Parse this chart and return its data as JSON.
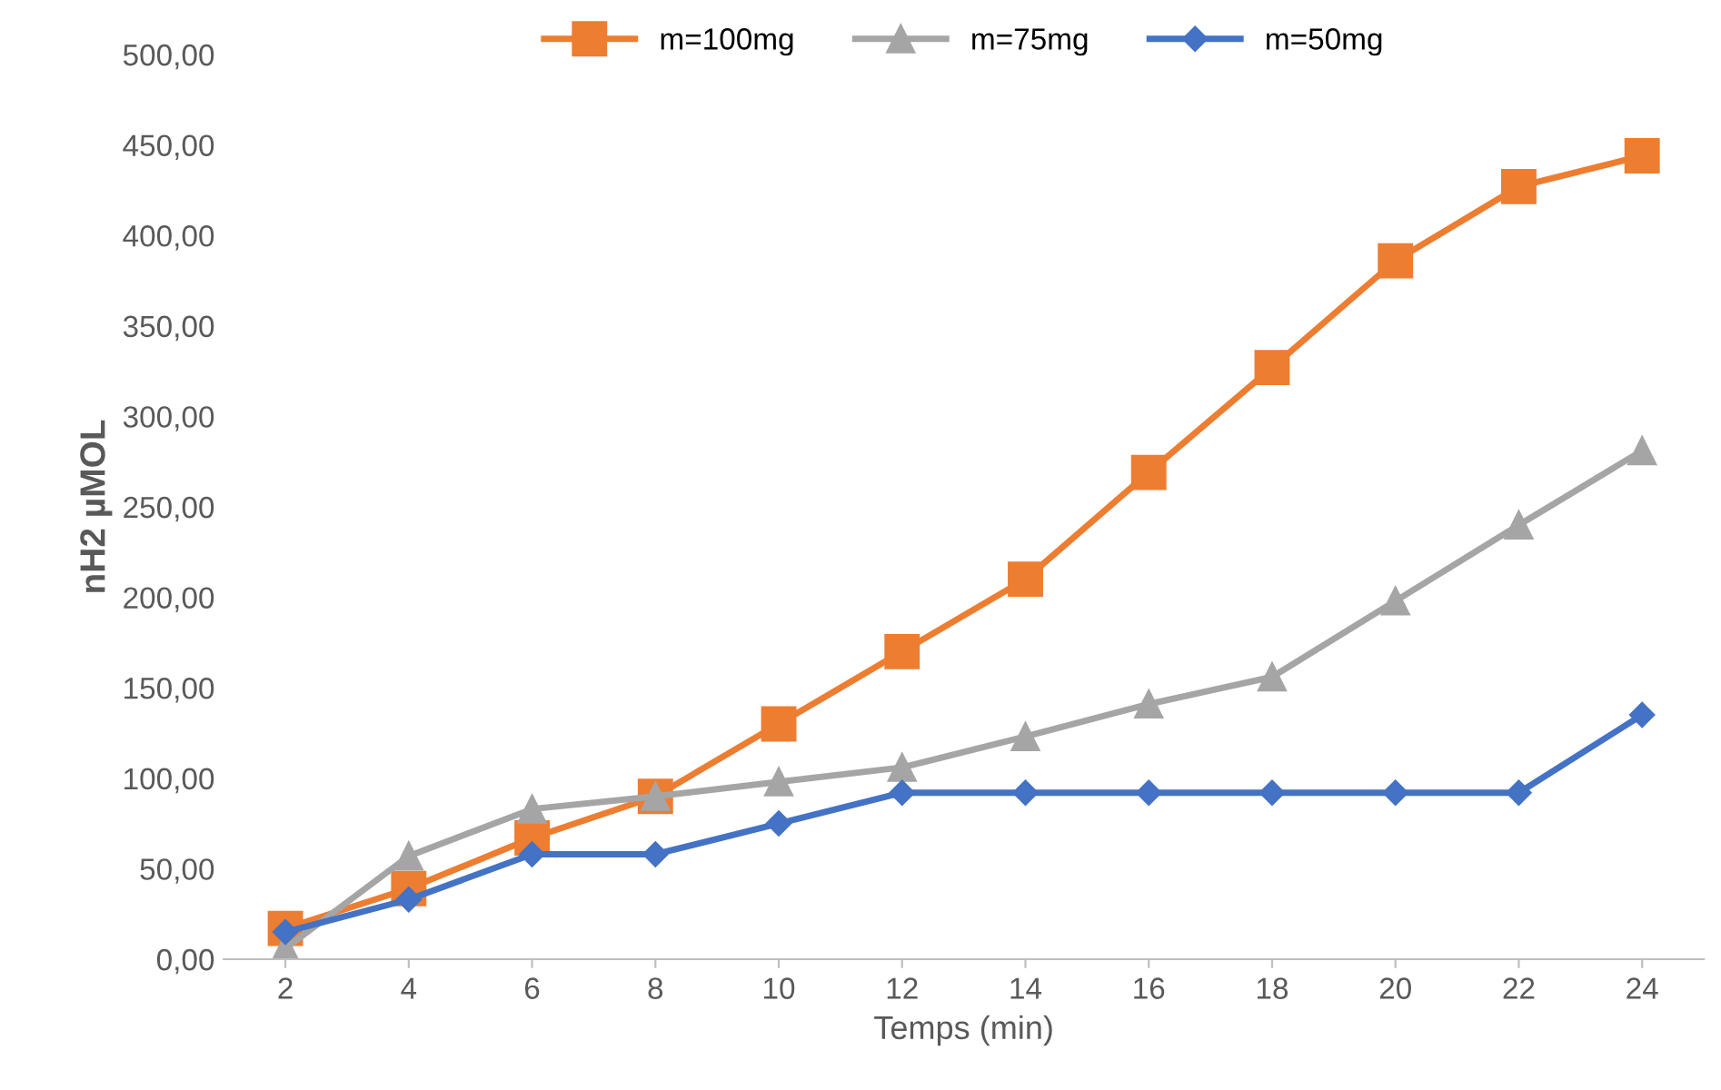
{
  "chart_data": {
    "type": "line",
    "xlabel": "Temps (min)",
    "ylabel": "nH2 µMOL",
    "categories": [
      "2",
      "4",
      "6",
      "8",
      "10",
      "12",
      "14",
      "16",
      "18",
      "20",
      "22",
      "24"
    ],
    "series": [
      {
        "name": "m=100mg",
        "color": "#ed7d31",
        "marker": "square",
        "values": [
          17,
          39,
          67,
          90,
          130,
          170,
          210,
          269,
          327,
          386,
          427,
          444
        ]
      },
      {
        "name": "m=75mg",
        "color": "#a5a5a5",
        "marker": "triangle",
        "values": [
          6,
          57,
          83,
          90,
          98,
          106,
          123,
          141,
          156,
          198,
          240,
          281
        ]
      },
      {
        "name": "m=50mg",
        "color": "#4472c4",
        "marker": "diamond",
        "values": [
          15,
          33,
          58,
          58,
          75,
          92,
          92,
          92,
          92,
          92,
          92,
          135
        ]
      }
    ],
    "ylim": [
      0,
      500
    ],
    "yticks": [
      {
        "value": 0,
        "label": "0,00"
      },
      {
        "value": 50,
        "label": "50,00"
      },
      {
        "value": 100,
        "label": "100,00"
      },
      {
        "value": 150,
        "label": "150,00"
      },
      {
        "value": 200,
        "label": "200,00"
      },
      {
        "value": 250,
        "label": "250,00"
      },
      {
        "value": 300,
        "label": "300,00"
      },
      {
        "value": 350,
        "label": "350,00"
      },
      {
        "value": 400,
        "label": "400,00"
      },
      {
        "value": 450,
        "label": "450,00"
      },
      {
        "value": 500,
        "label": "500,00"
      }
    ],
    "grid": false,
    "legend": "top",
    "line_style": "solid"
  }
}
